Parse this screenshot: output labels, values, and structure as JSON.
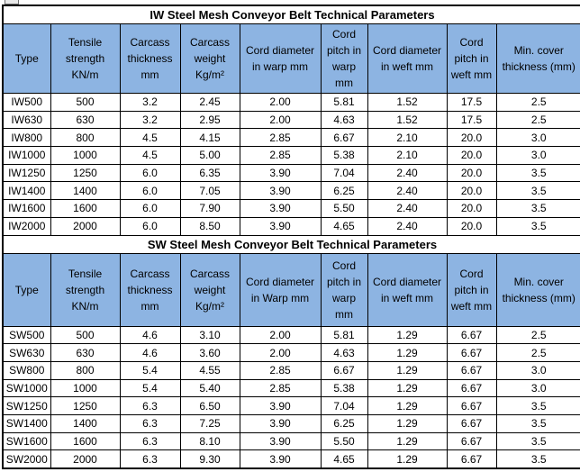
{
  "colors": {
    "header_bg": "#8DB4E2",
    "border": "#000000",
    "title_bg": "#FFFFFF",
    "text": "#000000"
  },
  "artifact": {
    "name": "clipped-image-icon"
  },
  "sections": [
    {
      "title": "IW Steel Mesh Conveyor Belt Technical Parameters",
      "columns": [
        "Type",
        "Tensile strength KN/m",
        "Carcass thickness mm",
        "Carcass weight Kg/m²",
        "Cord diameter in warp mm",
        "Cord pitch in warp mm",
        "Cord diameter in weft mm",
        "Cord pitch in weft mm",
        "Min. cover thickness (mm)"
      ],
      "rows": [
        [
          "IW500",
          "500",
          "3.2",
          "2.45",
          "2.00",
          "5.81",
          "1.52",
          "17.5",
          "2.5"
        ],
        [
          "IW630",
          "630",
          "3.2",
          "2.95",
          "2.00",
          "4.63",
          "1.52",
          "17.5",
          "2.5"
        ],
        [
          "IW800",
          "800",
          "4.5",
          "4.15",
          "2.85",
          "6.67",
          "2.10",
          "20.0",
          "3.0"
        ],
        [
          "IW1000",
          "1000",
          "4.5",
          "5.00",
          "2.85",
          "5.38",
          "2.10",
          "20.0",
          "3.0"
        ],
        [
          "IW1250",
          "1250",
          "6.0",
          "6.35",
          "3.90",
          "7.04",
          "2.40",
          "20.0",
          "3.5"
        ],
        [
          "IW1400",
          "1400",
          "6.0",
          "7.05",
          "3.90",
          "6.25",
          "2.40",
          "20.0",
          "3.5"
        ],
        [
          "IW1600",
          "1600",
          "6.0",
          "7.90",
          "3.90",
          "5.50",
          "2.40",
          "20.0",
          "3.5"
        ],
        [
          "IW2000",
          "2000",
          "6.0",
          "8.50",
          "3.90",
          "4.65",
          "2.40",
          "20.0",
          "3.5"
        ]
      ]
    },
    {
      "title": "SW Steel Mesh Conveyor Belt Technical Parameters",
      "columns": [
        "Type",
        "Tensile strength KN/m",
        "Carcass thickness mm",
        "Carcass weight Kg/m²",
        "Cord diameter in Warp mm",
        "Cord pitch in warp mm",
        "Cord diameter in weft mm",
        "Cord pitch in weft mm",
        "Min. cover thickness (mm)"
      ],
      "rows": [
        [
          "SW500",
          "500",
          "4.6",
          "3.10",
          "2.00",
          "5.81",
          "1.29",
          "6.67",
          "2.5"
        ],
        [
          "SW630",
          "630",
          "4.6",
          "3.60",
          "2.00",
          "4.63",
          "1.29",
          "6.67",
          "2.5"
        ],
        [
          "SW800",
          "800",
          "5.4",
          "4.55",
          "2.85",
          "6.67",
          "1.29",
          "6.67",
          "3.0"
        ],
        [
          "SW1000",
          "1000",
          "5.4",
          "5.40",
          "2.85",
          "5.38",
          "1.29",
          "6.67",
          "3.0"
        ],
        [
          "SW1250",
          "1250",
          "6.3",
          "6.50",
          "3.90",
          "7.04",
          "1.29",
          "6.67",
          "3.5"
        ],
        [
          "SW1400",
          "1400",
          "6.3",
          "7.25",
          "3.90",
          "6.25",
          "1.29",
          "6.67",
          "3.5"
        ],
        [
          "SW1600",
          "1600",
          "6.3",
          "8.10",
          "3.90",
          "5.50",
          "1.29",
          "6.67",
          "3.5"
        ],
        [
          "SW2000",
          "2000",
          "6.3",
          "9.30",
          "3.90",
          "4.65",
          "1.29",
          "6.67",
          "3.5"
        ]
      ]
    }
  ]
}
